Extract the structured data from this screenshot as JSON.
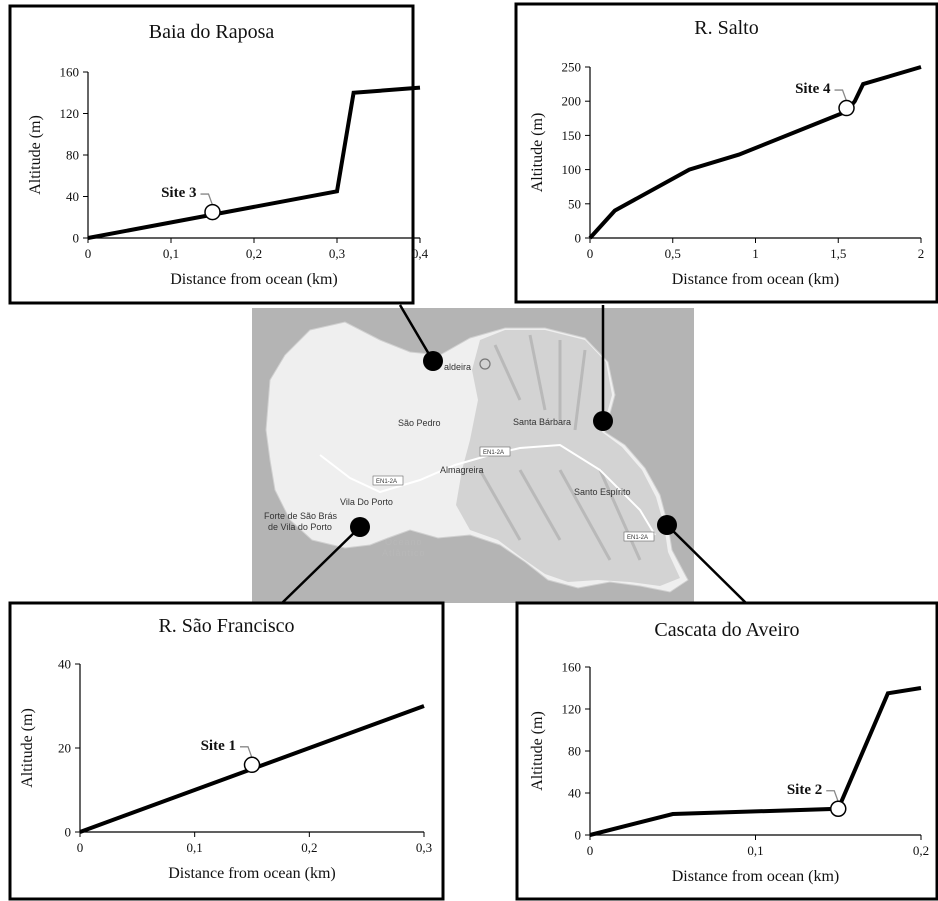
{
  "map": {
    "labels": {
      "caldeira": "aldeira",
      "sao_pedro": "São Pedro",
      "santa_barbara": "Santa Bárbara",
      "almagreira": "Almagreira",
      "vila_do_porto": "Vila Do Porto",
      "forte_line1": "Forte de São Brás",
      "forte_line2": "de Vila do Porto",
      "santo_espirito": "Santo Espírito",
      "oceano": "Oceano",
      "atlantico": "Atlântico",
      "road_en1_a": "EN1-2A",
      "road_en1_b": "EN1-2A",
      "road_en1_c": "EN1-2A"
    }
  },
  "chart_data": [
    {
      "type": "line",
      "title": "Baia do Raposa",
      "xlabel": "Distance from ocean (km)",
      "ylabel": "Altitude (m)",
      "x": [
        0,
        0.3,
        0.32,
        0.4
      ],
      "y": [
        0,
        45,
        140,
        145
      ],
      "xlim": [
        0,
        0.4
      ],
      "ylim": [
        0,
        160
      ],
      "x_ticks": [
        0,
        0.1,
        0.2,
        0.3,
        0.4
      ],
      "x_tick_labels": [
        "0",
        "0,1",
        "0,2",
        "0,3",
        "0,4"
      ],
      "y_ticks": [
        0,
        40,
        80,
        120,
        160
      ],
      "y_tick_labels": [
        "0",
        "40",
        "80",
        "120",
        "160"
      ],
      "site": {
        "label": "Site 3",
        "x": 0.15,
        "y": 25
      }
    },
    {
      "type": "line",
      "title": "R. Salto",
      "xlabel": "Distance from ocean (km)",
      "ylabel": "Altitude (m)",
      "x": [
        0,
        0.15,
        0.6,
        0.9,
        1.55,
        1.6,
        1.65,
        2
      ],
      "y": [
        0,
        40,
        100,
        122,
        185,
        200,
        225,
        250
      ],
      "xlim": [
        0,
        2
      ],
      "ylim": [
        0,
        250
      ],
      "x_ticks": [
        0,
        0.5,
        1,
        1.5,
        2
      ],
      "x_tick_labels": [
        "0",
        "0,5",
        "1",
        "1,5",
        "2"
      ],
      "y_ticks": [
        0,
        50,
        100,
        150,
        200,
        250
      ],
      "y_tick_labels": [
        "0",
        "50",
        "100",
        "150",
        "200",
        "250"
      ],
      "site": {
        "label": "Site 4",
        "x": 1.55,
        "y": 190
      }
    },
    {
      "type": "line",
      "title": "R. São Francisco",
      "xlabel": "Distance from ocean (km)",
      "ylabel": "Altitude (m)",
      "x": [
        0,
        0.3
      ],
      "y": [
        0,
        30
      ],
      "xlim": [
        0,
        0.3
      ],
      "ylim": [
        0,
        40
      ],
      "x_ticks": [
        0,
        0.1,
        0.2,
        0.3
      ],
      "x_tick_labels": [
        "0",
        "0,1",
        "0,2",
        "0,3"
      ],
      "y_ticks": [
        0,
        20,
        40
      ],
      "y_tick_labels": [
        "0",
        "20",
        "40"
      ],
      "site": {
        "label": "Site 1",
        "x": 0.15,
        "y": 16
      }
    },
    {
      "type": "line",
      "title": "Cascata do Aveiro",
      "xlabel": "Distance from ocean (km)",
      "ylabel": "Altitude (m)",
      "x": [
        0,
        0.05,
        0.15,
        0.18,
        0.2
      ],
      "y": [
        0,
        20,
        25,
        135,
        140
      ],
      "xlim": [
        0,
        0.2
      ],
      "ylim": [
        0,
        160
      ],
      "x_ticks": [
        0,
        0.1,
        0.2
      ],
      "x_tick_labels": [
        "0",
        "0,1",
        "0,2"
      ],
      "y_ticks": [
        0,
        40,
        80,
        120,
        160
      ],
      "y_tick_labels": [
        "0",
        "40",
        "80",
        "120",
        "160"
      ],
      "site": {
        "label": "Site 2",
        "x": 0.15,
        "y": 25
      }
    }
  ]
}
